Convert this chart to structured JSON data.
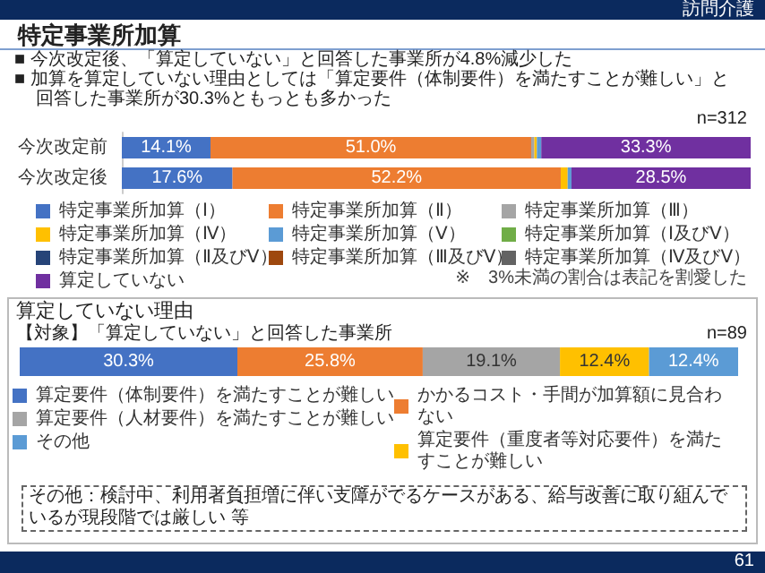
{
  "chart_data": [
    {
      "type": "bar",
      "orientation": "horizontal",
      "stacked": true,
      "title": "特定事業所加算",
      "categories": [
        "今次改定前",
        "今次改定後"
      ],
      "series": [
        {
          "name": "特定事業所加算（Ⅰ）",
          "color": "#4472c4",
          "values": [
            14.1,
            17.6
          ],
          "value_labels": [
            "14.1%",
            "17.6%"
          ]
        },
        {
          "name": "特定事業所加算（Ⅱ）",
          "color": "#ed7d31",
          "values": [
            51.0,
            52.2
          ],
          "value_labels": [
            "51.0%",
            "52.2%"
          ]
        },
        {
          "name": "特定事業所加算（Ⅲ）",
          "color": "#a5a5a5",
          "values": [
            0.5,
            0
          ],
          "value_labels": [
            null,
            null
          ]
        },
        {
          "name": "特定事業所加算（Ⅳ）",
          "color": "#ffc000",
          "values": [
            0.4,
            1.1
          ],
          "value_labels": [
            null,
            null
          ]
        },
        {
          "name": "特定事業所加算（Ⅴ）",
          "color": "#5b9bd5",
          "values": [
            0.7,
            0.6
          ],
          "value_labels": [
            null,
            null
          ]
        },
        {
          "name": "特定事業所加算（Ⅰ及びⅤ）",
          "color": "#70ad47",
          "values": [
            0,
            0
          ],
          "value_labels": [
            null,
            null
          ]
        },
        {
          "name": "特定事業所加算（Ⅱ及びⅤ）",
          "color": "#264478",
          "values": [
            0,
            0
          ],
          "value_labels": [
            null,
            null
          ]
        },
        {
          "name": "特定事業所加算（Ⅲ及びⅤ）",
          "color": "#9e480e",
          "values": [
            0,
            0
          ],
          "value_labels": [
            null,
            null
          ]
        },
        {
          "name": "特定事業所加算（Ⅳ及びⅤ）",
          "color": "#636363",
          "values": [
            0,
            0
          ],
          "value_labels": [
            null,
            null
          ]
        },
        {
          "name": "算定していない",
          "color": "#7030a0",
          "values": [
            33.3,
            28.5
          ],
          "value_labels": [
            "33.3%",
            "28.5%"
          ]
        }
      ],
      "legend": "bottom",
      "tick_labels": "y",
      "annotations": [
        "訪問介護",
        "■ 今次改定後、「算定していない」と回答した事業所が4.8%減少した",
        "■ 加算を算定していない理由としては「算定要件（体制要件）を満たすことが難しい」と回答した事業所が30.3%ともっとも多かった",
        "n=312",
        "※　3%未満の割合は表記を割愛した",
        "61"
      ]
    },
    {
      "type": "bar",
      "orientation": "horizontal",
      "stacked": true,
      "title": "算定していない理由",
      "subtitle": "【対象】「算定していない」と回答した事業所",
      "categories": [
        null
      ],
      "series": [
        {
          "name": "算定要件（体制要件）を満たすことが難しい",
          "color": "#4472c4",
          "values": [
            30.3
          ],
          "value_labels": [
            "30.3%"
          ]
        },
        {
          "name": "かかるコスト・手間が加算額に見合わない",
          "color": "#ed7d31",
          "values": [
            25.8
          ],
          "value_labels": [
            "25.8%"
          ]
        },
        {
          "name": "算定要件（人材要件）を満たすことが難しい",
          "color": "#a5a5a5",
          "values": [
            19.1
          ],
          "value_labels": [
            "19.1%"
          ]
        },
        {
          "name": "算定要件（重度者等対応要件）を満たすことが難しい",
          "color": "#ffc000",
          "values": [
            12.4
          ],
          "value_labels": [
            "12.4%"
          ]
        },
        {
          "name": "その他",
          "color": "#5b9bd5",
          "values": [
            12.4
          ],
          "value_labels": [
            "12.4%"
          ]
        }
      ],
      "legend": "bottom",
      "tick_labels": false,
      "annotations": [
        "n=89",
        "その他：検討中、利用者負担増に伴い支障がでるケースがある、給与改善に取り組んでいるが現段階では厳しい 等"
      ]
    }
  ]
}
